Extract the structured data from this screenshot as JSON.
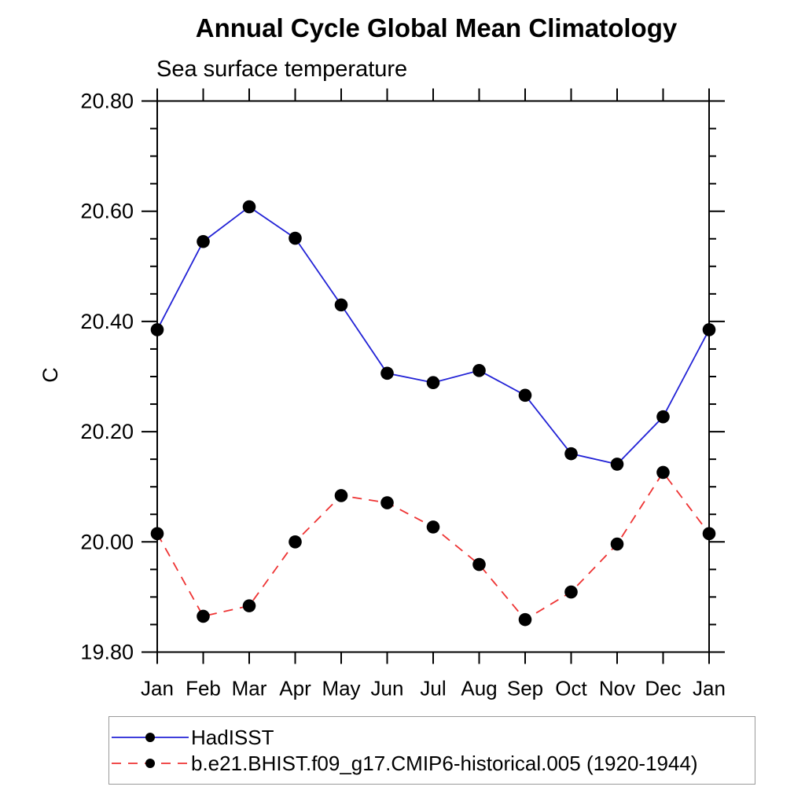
{
  "chart_data": {
    "type": "line",
    "title": "Annual Cycle Global Mean Climatology",
    "subtitle": "Sea surface temperature",
    "ylabel": "C",
    "xlabel": "",
    "categories": [
      "Jan",
      "Feb",
      "Mar",
      "Apr",
      "May",
      "Jun",
      "Jul",
      "Aug",
      "Sep",
      "Oct",
      "Nov",
      "Dec",
      "Jan"
    ],
    "ylim": [
      19.8,
      20.8
    ],
    "ytick_major": 0.2,
    "ytick_minor": 0.05,
    "ytick_labels": [
      "19.80",
      "20.00",
      "20.20",
      "20.40",
      "20.60",
      "20.80"
    ],
    "grid": false,
    "legend_position": "bottom-left",
    "marker_color": "#000000",
    "axis_color": "#000000",
    "series": [
      {
        "name": "HadISST",
        "color": "#2222d6",
        "style": "solid",
        "values": [
          20.385,
          20.545,
          20.608,
          20.551,
          20.43,
          20.306,
          20.289,
          20.311,
          20.266,
          20.16,
          20.141,
          20.227,
          20.385
        ]
      },
      {
        "name": "b.e21.BHIST.f09_g17.CMIP6-historical.005 (1920-1944)",
        "color": "#ee3333",
        "style": "dashed",
        "values": [
          20.015,
          19.865,
          19.884,
          20.0,
          20.084,
          20.071,
          20.027,
          19.959,
          19.859,
          19.909,
          19.996,
          20.126,
          20.015
        ]
      }
    ]
  }
}
